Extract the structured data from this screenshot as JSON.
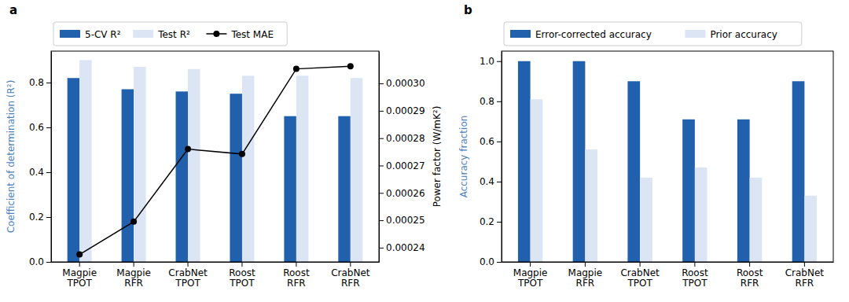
{
  "chart_data": [
    {
      "type": "bar",
      "title": "a",
      "categories": [
        "Magpie\nTPOT",
        "Magpie\nRFR",
        "CrabNet\nTPOT",
        "Roost\nTPOT",
        "Roost\nRFR",
        "CrabNet\nRFR"
      ],
      "series": [
        {
          "name": "5-CV R²",
          "color": "#2160ad",
          "values": [
            0.82,
            0.77,
            0.76,
            0.75,
            0.65,
            0.65
          ]
        },
        {
          "name": "Test R²",
          "color": "#dbe5f4",
          "values": [
            0.9,
            0.87,
            0.86,
            0.83,
            0.83,
            0.82
          ]
        },
        {
          "name": "Test MAE",
          "type": "line",
          "axis": "y2",
          "color": "#000000",
          "marker": "circle",
          "values": [
            0.0002375,
            0.0002495,
            0.000276,
            0.0002742,
            0.0003053,
            0.0003063
          ]
        }
      ],
      "y_label": "Coefficient of determination (R²)",
      "y2_label": "Power factor (W/mK²)",
      "ylim": [
        0,
        0.94
      ],
      "yticks": [
        {
          "value": 0,
          "label": "0.0"
        },
        0.2,
        0.4,
        0.6,
        0.8
      ],
      "y2lim": [
        0.0002348,
        0.0003118
      ],
      "y2ticks": [
        0.00024,
        0.00025,
        0.00026,
        0.00027,
        0.00028,
        0.00029,
        {
          "value": 0.0003,
          "label": "0.00030"
        }
      ],
      "legend": "top",
      "grid": false
    },
    {
      "type": "bar",
      "title": "b",
      "categories": [
        "Magpie\nTPOT",
        "Magpie\nRFR",
        "CrabNet\nTPOT",
        "Roost\nTPOT",
        "Roost\nRFR",
        "CrabNet\nRFR"
      ],
      "series": [
        {
          "name": "Error-corrected accuracy",
          "color": "#2160ad",
          "values": [
            1.0,
            1.0,
            0.9,
            0.71,
            0.71,
            0.9
          ]
        },
        {
          "name": "Prior accuracy",
          "color": "#dbe5f4",
          "values": [
            0.81,
            0.56,
            0.42,
            0.47,
            0.42,
            0.33
          ]
        }
      ],
      "y_label": "Accuracy fraction",
      "ylim": [
        0,
        1.05
      ],
      "yticks": [
        {
          "value": 0,
          "label": "0.0"
        },
        0.2,
        0.4,
        0.6,
        0.8,
        {
          "value": 1,
          "label": "1.0"
        }
      ],
      "legend": "top",
      "grid": false
    }
  ]
}
